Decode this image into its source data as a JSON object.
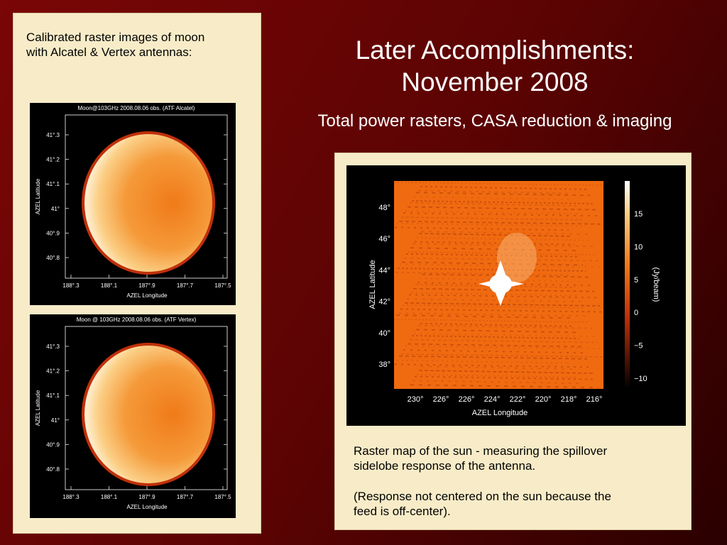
{
  "slide": {
    "title": [
      "Later Accomplishments:",
      "November 2008"
    ],
    "subtitle": "Total power rasters, CASA reduction & imaging",
    "left_panel": {
      "caption": [
        "Calibrated raster images of moon",
        "with Alcatel & Vertex antennas:"
      ],
      "images": [
        {
          "title": "Moon@103GHz 2008.08.06 obs. (ATF Alcatel)",
          "yticks": [
            "41°.3",
            "41°.2",
            "41°.1",
            "41°",
            "40°.9",
            "40°.8"
          ],
          "xticks": [
            "188°.3",
            "188°.1",
            "187°.9",
            "187°.7",
            "187°.5"
          ],
          "xlabel": "AZEL Longitude",
          "ylabel": "AZEL Latitude"
        },
        {
          "title": "Moon @ 103GHz 2008.08.06 obs. (ATF Vertex)",
          "yticks": [
            "41°.3",
            "41°.2",
            "41°.1",
            "41°",
            "40°.9",
            "40°.8"
          ],
          "xticks": [
            "188°.3",
            "188°.1",
            "187°.9",
            "187°.7",
            "187°.5"
          ],
          "xlabel": "AZEL Longitude",
          "ylabel": "AZEL Latitude"
        }
      ]
    },
    "right_panel": {
      "image": {
        "yticks": [
          "48°",
          "46°",
          "44°",
          "42°",
          "40°",
          "38°"
        ],
        "xticks": [
          "230°",
          "226°",
          "226°",
          "224°",
          "222°",
          "220°",
          "218°",
          "216°"
        ],
        "colorbar_ticks": [
          "15",
          "10",
          "5",
          "0",
          "−5",
          "−10"
        ],
        "colorbar_label": "(Jy/beam)",
        "xlabel": "AZEL Longitude",
        "ylabel": "AZEL Latitude"
      },
      "paragraphs": [
        [
          "Raster map of the sun - measuring the spillover",
          "sidelobe response of the antenna."
        ],
        [
          "(Response not centered on the sun because the",
          "feed is off-center)."
        ]
      ]
    }
  }
}
